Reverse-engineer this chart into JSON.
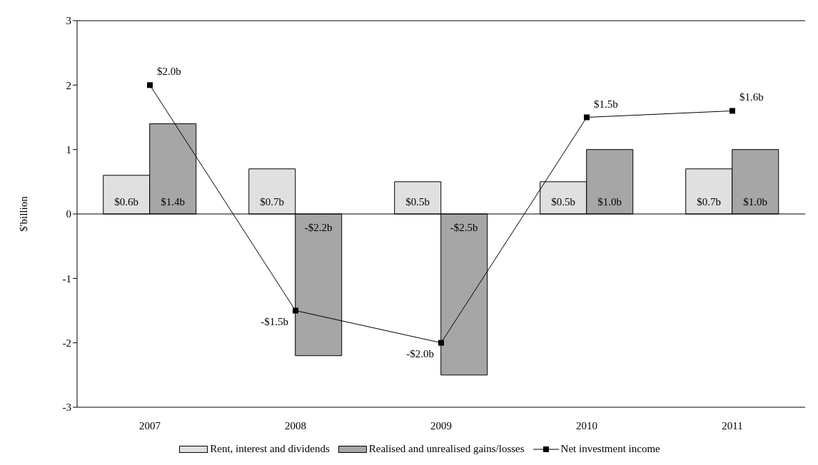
{
  "chart_data": {
    "type": "bar",
    "categories": [
      "2007",
      "2008",
      "2009",
      "2010",
      "2011"
    ],
    "ylabel": "$'billion",
    "ylim": [
      -3,
      3
    ],
    "yticks": [
      -3,
      -2,
      -1,
      0,
      1,
      2,
      3
    ],
    "legend": "bottom",
    "marker": "square",
    "series": [
      {
        "name": "Rent, interest and dividends",
        "color": "#e0e0e0",
        "values": [
          0.6,
          0.7,
          0.5,
          0.5,
          0.7
        ],
        "value_labels": [
          "$0.6b",
          "$0.7b",
          "$0.5b",
          "$0.5b",
          "$0.7b"
        ]
      },
      {
        "name": "Realised and unrealised gains/losses",
        "color": "#a6a6a6",
        "values": [
          1.4,
          -2.2,
          -2.5,
          1.0,
          1.0
        ],
        "value_labels": [
          "$1.4b",
          "-$2.2b",
          "-$2.5b",
          "$1.0b",
          "$1.0b"
        ]
      },
      {
        "name": "Net investment income",
        "type": "line",
        "color": "#000000",
        "values": [
          2.0,
          -1.5,
          -2.0,
          1.5,
          1.6
        ],
        "value_labels": [
          "$2.0b",
          "-$1.5b",
          "-$2.0b",
          "$1.5b",
          "$1.6b"
        ]
      }
    ]
  }
}
